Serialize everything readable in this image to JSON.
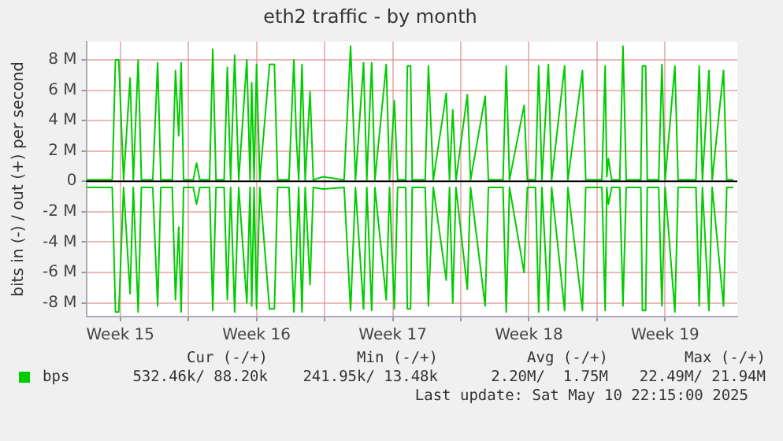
{
  "chart_data": {
    "type": "line",
    "title": "eth2 traffic - by month",
    "ylabel": "bits in (-) / out (+) per second",
    "x": [
      "2025-04-08T18:00",
      "2025-04-10T02:00",
      "2025-04-10T06:00",
      "2025-04-10T10:00",
      "2025-04-10T16:00",
      "2025-04-11T00:00",
      "2025-04-11T04:00",
      "2025-04-11T10:00",
      "2025-04-11T14:00",
      "2025-04-12T04:00",
      "2025-04-12T10:00",
      "2025-04-12T14:00",
      "2025-04-13T04:00",
      "2025-04-13T08:00",
      "2025-04-13T12:00",
      "2025-04-13T15:00",
      "2025-04-13T18:00",
      "2025-04-14T06:00",
      "2025-04-14T10:00",
      "2025-04-14T14:00",
      "2025-04-15T02:00",
      "2025-04-15T06:00",
      "2025-04-15T10:00",
      "2025-04-15T20:00",
      "2025-04-16T00:00",
      "2025-04-16T04:00",
      "2025-04-16T09:00",
      "2025-04-16T14:00",
      "2025-04-17T00:00",
      "2025-04-17T04:00",
      "2025-04-17T06:00",
      "2025-04-17T09:00",
      "2025-04-17T12:00",
      "2025-04-17T16:00",
      "2025-04-18T04:00",
      "2025-04-18T10:00",
      "2025-04-18T14:00",
      "2025-04-19T04:00",
      "2025-04-19T10:00",
      "2025-04-19T13:00",
      "2025-04-19T16:00",
      "2025-04-19T20:00",
      "2025-04-20T00:00",
      "2025-04-20T06:00",
      "2025-04-20T10:00",
      "2025-04-20T22:00",
      "2025-04-22T00:00",
      "2025-04-22T08:00",
      "2025-04-22T14:00",
      "2025-04-23T00:00",
      "2025-04-23T04:00",
      "2025-04-23T10:00",
      "2025-04-23T14:00",
      "2025-04-24T04:00",
      "2025-04-24T08:00",
      "2025-04-24T14:00",
      "2025-04-24T18:00",
      "2025-04-25T04:00",
      "2025-04-25T06:00",
      "2025-04-25T10:00",
      "2025-04-25T12:00",
      "2025-04-26T04:00",
      "2025-04-26T08:00",
      "2025-04-26T14:00",
      "2025-04-27T06:00",
      "2025-04-27T10:00",
      "2025-04-27T14:00",
      "2025-04-27T18:00",
      "2025-04-28T08:00",
      "2025-04-28T12:00",
      "2025-04-29T06:00",
      "2025-04-29T10:00",
      "2025-04-30T04:00",
      "2025-04-30T08:00",
      "2025-04-30T12:00",
      "2025-05-01T06:00",
      "2025-05-01T10:00",
      "2025-05-01T20:00",
      "2025-05-02T00:00",
      "2025-05-02T04:00",
      "2025-05-02T12:00",
      "2025-05-02T16:00",
      "2025-05-03T08:00",
      "2025-05-03T12:00",
      "2025-05-04T06:00",
      "2025-05-04T10:00",
      "2025-05-05T06:00",
      "2025-05-05T10:00",
      "2025-05-05T12:00",
      "2025-05-05T14:00",
      "2025-05-05T18:00",
      "2025-05-06T04:00",
      "2025-05-06T08:00",
      "2025-05-06T12:00",
      "2025-05-07T06:00",
      "2025-05-07T08:00",
      "2025-05-07T12:00",
      "2025-05-07T14:00",
      "2025-05-08T04:00",
      "2025-05-08T08:00",
      "2025-05-08T12:00",
      "2025-05-09T00:00",
      "2025-05-09T04:00",
      "2025-05-10T02:00",
      "2025-05-10T06:00",
      "2025-05-10T10:00",
      "2025-05-10T18:00",
      "2025-05-10T22:00",
      "2025-05-11T12:00",
      "2025-05-11T16:00",
      "2025-05-12T00:00"
    ],
    "series": [
      {
        "name": "bps",
        "color": "#00cc00",
        "values": [
          0.1,
          0.1,
          8.0,
          8.0,
          0.1,
          6.8,
          0.1,
          8.0,
          0.1,
          0.1,
          7.8,
          0.1,
          0.1,
          7.3,
          3.0,
          7.8,
          0.1,
          0.1,
          1.2,
          0.1,
          0.1,
          8.7,
          0.1,
          0.1,
          7.5,
          0.1,
          8.3,
          0.1,
          8.0,
          0.1,
          6.5,
          0.1,
          7.7,
          0.1,
          7.7,
          7.7,
          0.1,
          0.1,
          8.0,
          3.0,
          0.1,
          7.7,
          0.1,
          5.9,
          0.1,
          0.3,
          0.1,
          8.9,
          0.1,
          7.8,
          0.1,
          7.8,
          0.1,
          7.7,
          0.1,
          5.3,
          0.1,
          0.1,
          7.6,
          7.6,
          0.1,
          0.1,
          7.6,
          0.1,
          5.8,
          0.1,
          4.7,
          0.1,
          5.7,
          0.1,
          5.6,
          0.1,
          0.1,
          7.6,
          0.1,
          5.0,
          0.1,
          0.1,
          7.6,
          0.1,
          7.7,
          0.1,
          7.6,
          0.1,
          7.3,
          0.1,
          0.1,
          7.6,
          0.3,
          1.5,
          0.1,
          0.1,
          8.9,
          0.1,
          0.1,
          7.6,
          7.6,
          0.1,
          0.1,
          7.7,
          0.1,
          7.6,
          0.1,
          0.1,
          7.6,
          0.1,
          7.3,
          0.1,
          7.3,
          0.1,
          0.1
        ]
      },
      {
        "color": "#00cc00",
        "values": [
          -0.4,
          -0.4,
          -8.6,
          -8.6,
          -0.4,
          -7.4,
          -0.4,
          -8.6,
          -0.4,
          -0.4,
          -8.2,
          -0.4,
          -0.4,
          -7.8,
          -3.0,
          -8.6,
          -0.4,
          -0.4,
          -1.5,
          -0.4,
          -0.4,
          -8.5,
          -0.4,
          -0.4,
          -7.8,
          -0.4,
          -8.6,
          -0.4,
          -8.0,
          -0.4,
          -8.2,
          -0.4,
          -8.4,
          -0.4,
          -8.4,
          -8.4,
          -0.4,
          -0.4,
          -8.6,
          -5.0,
          -0.4,
          -8.6,
          -0.4,
          -6.8,
          -0.4,
          -0.5,
          -0.4,
          -8.5,
          -0.4,
          -8.4,
          -0.4,
          -8.5,
          -0.4,
          -7.8,
          -0.4,
          -8.4,
          -0.4,
          -0.4,
          -8.4,
          -8.4,
          -0.4,
          -0.4,
          -8.2,
          -0.4,
          -6.5,
          -0.4,
          -8.0,
          -0.4,
          -7.1,
          -0.4,
          -8.2,
          -0.4,
          -0.4,
          -8.6,
          -0.4,
          -6.0,
          -0.4,
          -0.4,
          -8.6,
          -0.4,
          -8.5,
          -0.4,
          -8.5,
          -0.4,
          -8.5,
          -0.4,
          -0.4,
          -8.5,
          -0.4,
          -1.5,
          -0.4,
          -0.4,
          -8.2,
          -0.4,
          -0.4,
          -8.5,
          -8.5,
          -0.4,
          -0.4,
          -8.2,
          -0.4,
          -8.6,
          -0.4,
          -0.4,
          -8.2,
          -0.4,
          -8.5,
          -0.4,
          -8.2,
          -0.4,
          -0.4
        ]
      }
    ],
    "xlim": [
      "2025-04-08T18:00",
      "2025-05-12T05:00"
    ],
    "xticks": [
      {
        "value": "2025-04-10T12:00",
        "label": "Week 15"
      },
      {
        "value": "2025-04-14",
        "label": null
      },
      {
        "value": "2025-04-17T12:00",
        "label": "Week 16"
      },
      {
        "value": "2025-04-21",
        "label": null
      },
      {
        "value": "2025-04-24T12:00",
        "label": "Week 17"
      },
      {
        "value": "2025-04-28",
        "label": null
      },
      {
        "value": "2025-05-01T12:00",
        "label": "Week 18"
      },
      {
        "value": "2025-05-05",
        "label": null
      },
      {
        "value": "2025-05-08T12:00",
        "label": "Week 19"
      }
    ],
    "ylim": [
      -8.9,
      9.2
    ],
    "yticks": [
      {
        "value": -8,
        "label": "-8 M"
      },
      {
        "value": -6,
        "label": "-6 M"
      },
      {
        "value": -4,
        "label": "-4 M"
      },
      {
        "value": -2,
        "label": "-2 M"
      },
      0,
      {
        "value": 2,
        "label": "2 M"
      },
      {
        "value": 4,
        "label": "4 M"
      },
      {
        "value": 6,
        "label": "6 M"
      },
      {
        "value": 8,
        "label": "8 M"
      }
    ],
    "ref_lines": [
      {
        "axis": "y",
        "value": 0,
        "color": "#000000"
      }
    ],
    "grid": true,
    "legend": "bottom left",
    "annotations": [
      "Cur (-/+)",
      "Min (-/+)",
      "Avg (-/+)",
      "Max (-/+)",
      "532.46k/ 88.20k",
      "241.95k/ 13.48k",
      "2.20M/  1.75M",
      "22.49M/ 21.94M",
      "Last update: Sat May 10 22:15:00 2025"
    ]
  }
}
